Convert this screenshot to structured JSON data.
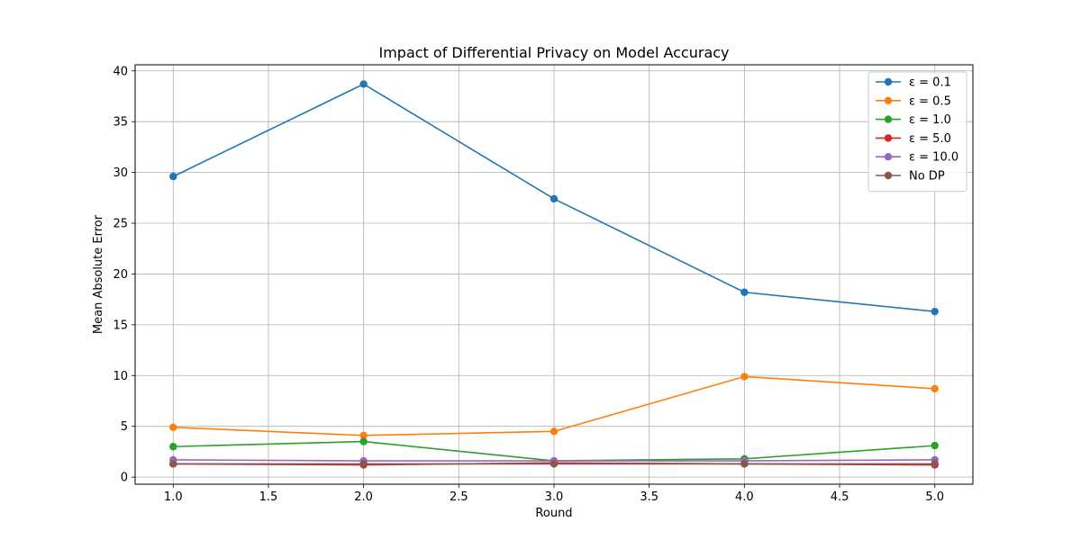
{
  "chart_data": {
    "type": "line",
    "title": "Impact of Differential Privacy on Model Accuracy",
    "xlabel": "Round",
    "ylabel": "Mean Absolute Error",
    "x": [
      1.0,
      2.0,
      3.0,
      4.0,
      5.0
    ],
    "xlim": [
      0.8,
      5.2
    ],
    "ylim": [
      -0.7,
      40.6
    ],
    "xticks": [
      1.0,
      1.5,
      2.0,
      2.5,
      3.0,
      3.5,
      4.0,
      4.5,
      5.0
    ],
    "xtick_labels": [
      "1.0",
      "1.5",
      "2.0",
      "2.5",
      "3.0",
      "3.5",
      "4.0",
      "4.5",
      "5.0"
    ],
    "yticks": [
      0,
      5,
      10,
      15,
      20,
      25,
      30,
      35,
      40
    ],
    "ytick_labels": [
      "0",
      "5",
      "10",
      "15",
      "20",
      "25",
      "30",
      "35",
      "40"
    ],
    "grid": true,
    "legend_position": "top-right",
    "series": [
      {
        "name": "ε = 0.1",
        "color": "#1f77b4",
        "values": [
          29.6,
          38.7,
          27.4,
          18.2,
          16.3
        ]
      },
      {
        "name": "ε = 0.5",
        "color": "#ff7f0e",
        "values": [
          4.9,
          4.1,
          4.5,
          9.9,
          8.7
        ]
      },
      {
        "name": "ε = 1.0",
        "color": "#2ca02c",
        "values": [
          3.0,
          3.5,
          1.6,
          1.8,
          3.1
        ]
      },
      {
        "name": "ε = 5.0",
        "color": "#d62728",
        "values": [
          1.3,
          1.2,
          1.4,
          1.3,
          1.2
        ]
      },
      {
        "name": "ε = 10.0",
        "color": "#9467bd",
        "values": [
          1.7,
          1.6,
          1.6,
          1.6,
          1.7
        ]
      },
      {
        "name": "No DP",
        "color": "#8c564b",
        "values": [
          1.3,
          1.3,
          1.3,
          1.3,
          1.3
        ]
      }
    ]
  }
}
